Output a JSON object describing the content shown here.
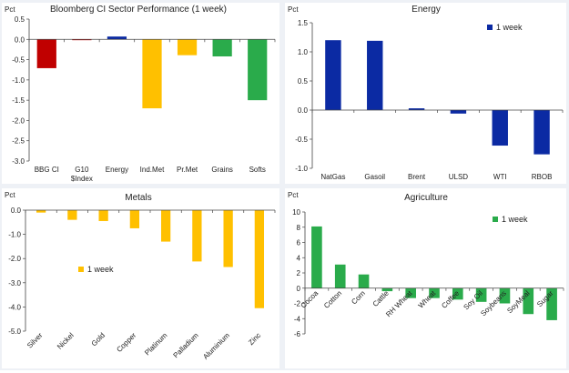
{
  "chart_data": [
    {
      "type": "bar",
      "title": "Bloomberg CI Sector Performance  (1 week)",
      "ylabel": "Pct",
      "ylim": [
        -3.0,
        0.5
      ],
      "yticks": [
        "0.5",
        "0.0",
        "-0.5",
        "-1.0",
        "-1.5",
        "-2.0",
        "-2.5",
        "-3.0"
      ],
      "categories": [
        "BBG CI",
        "G10 $Index",
        "Energy",
        "Ind.Met",
        "Pr.Met",
        "Grains",
        "Softs"
      ],
      "tick_labels": [
        [
          "BBG CI"
        ],
        [
          "G10",
          "$Index"
        ],
        [
          "Energy"
        ],
        [
          "Ind.Met"
        ],
        [
          "Pr.Met"
        ],
        [
          "Grains"
        ],
        [
          "Softs"
        ]
      ],
      "values": [
        -0.71,
        -0.02,
        0.07,
        -1.7,
        -0.39,
        -0.42,
        -1.5
      ],
      "colors": [
        "#c00000",
        "#c00000",
        "#0b2aa3",
        "#ffc000",
        "#ffc000",
        "#2aab4b",
        "#2aab4b"
      ],
      "legend": ""
    },
    {
      "type": "bar",
      "title": "Energy",
      "ylabel": "Pct",
      "ylim": [
        -1.0,
        1.5
      ],
      "yticks": [
        "1.5",
        "1.0",
        "0.5",
        "0.0",
        "-0.5",
        "-1.0"
      ],
      "categories": [
        "NatGas",
        "Gasoil",
        "Brent",
        "ULSD",
        "WTI",
        "RBOB"
      ],
      "values": [
        1.2,
        1.19,
        0.03,
        -0.06,
        -0.61,
        -0.76
      ],
      "color": "#0b2aa3",
      "legend": "1 week",
      "legend_position": "top-right"
    },
    {
      "type": "bar",
      "title": "Metals",
      "ylabel": "Pct",
      "ylim": [
        -5.0,
        0.0
      ],
      "yticks": [
        "0.0",
        "-1.0",
        "-2.0",
        "-3.0",
        "-4.0",
        "-5.0"
      ],
      "categories": [
        "Silver",
        "Nickel",
        "Gold",
        "Copper",
        "Platinum",
        "Palladium",
        "Aluminium",
        "Zinc"
      ],
      "values": [
        -0.1,
        -0.4,
        -0.45,
        -0.75,
        -1.3,
        -2.12,
        -2.35,
        -4.05
      ],
      "color": "#ffc000",
      "legend": "1 week",
      "legend_position": "center-left"
    },
    {
      "type": "bar",
      "title": "Agriculture",
      "ylabel": "Pct",
      "ylim": [
        -6,
        10
      ],
      "yticks": [
        "10",
        "8",
        "6",
        "4",
        "2",
        "0",
        "-2",
        "-4",
        "-6"
      ],
      "categories": [
        "Cocoa",
        "Cotton",
        "Corn",
        "Cattle",
        "RH Wheat",
        "Wheat",
        "Coffee",
        "Soy Oil",
        "Soybeans",
        "SoyMeal",
        "Sugar"
      ],
      "values": [
        8.1,
        3.1,
        1.8,
        -0.4,
        -1.3,
        -1.3,
        -1.5,
        -1.8,
        -2.0,
        -3.4,
        -4.2
      ],
      "color": "#2aab4b",
      "legend": "1 week",
      "legend_position": "top-center"
    }
  ]
}
